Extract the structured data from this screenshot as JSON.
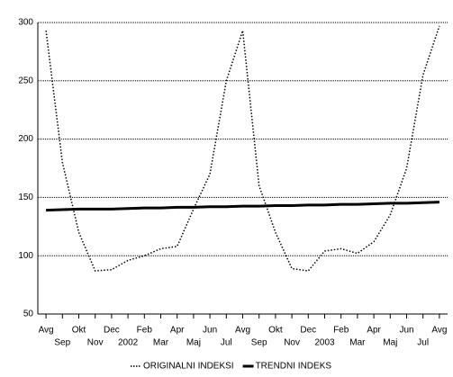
{
  "chart_data": {
    "type": "line",
    "categories": [
      "Avg",
      "Sep",
      "Okt",
      "Nov",
      "Dec",
      "2002",
      "Feb",
      "Mar",
      "Apr",
      "Maj",
      "Jun",
      "Jul",
      "Avg",
      "Sep",
      "Okt",
      "Nov",
      "Dec",
      "2003",
      "Feb",
      "Mar",
      "Apr",
      "Maj",
      "Jun",
      "Jul",
      "Avg"
    ],
    "series": [
      {
        "name": "ORIGINALNI INDEKSI",
        "color": "#000000",
        "style": "dotted",
        "values": [
          293,
          180,
          120,
          87,
          88,
          96,
          100,
          106,
          108,
          140,
          170,
          250,
          293,
          160,
          120,
          89,
          87,
          104,
          106,
          102,
          112,
          135,
          175,
          255,
          297
        ]
      },
      {
        "name": "TRENDNI INDEKS",
        "color": "#000000",
        "style": "solid",
        "values": [
          139,
          139.5,
          140,
          140,
          140,
          140.5,
          141,
          141,
          141.5,
          141.5,
          142,
          142,
          142.5,
          142.5,
          143,
          143,
          143.5,
          143.5,
          144,
          144,
          144.5,
          145,
          145,
          145.5,
          146
        ]
      }
    ],
    "ylim": [
      50,
      300
    ],
    "yticks": [
      50,
      100,
      150,
      200,
      250,
      300
    ],
    "grid": true,
    "legend": "bottom"
  }
}
